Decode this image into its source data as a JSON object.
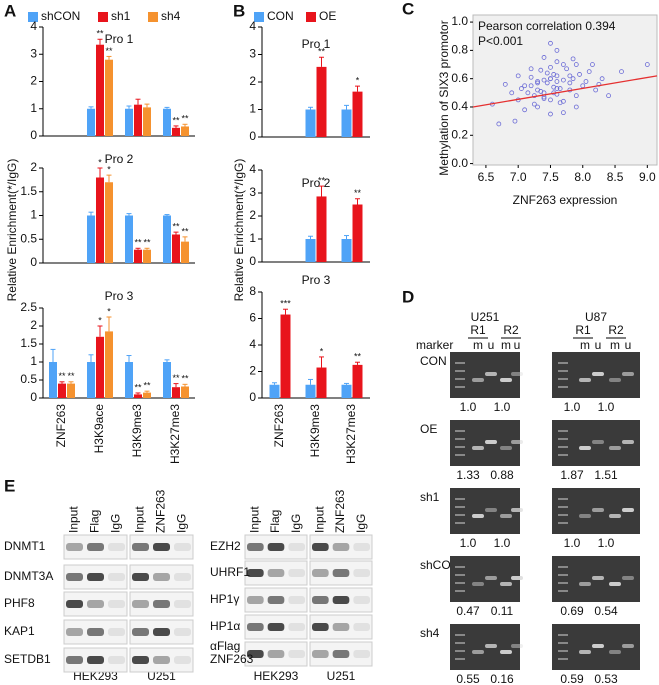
{
  "panel_labels": [
    "A",
    "B",
    "C",
    "D",
    "E"
  ],
  "chart_data": [
    {
      "type": "bar",
      "ylabel": "Relative Enrichment(*/IgG)",
      "categories": [
        "ZNF263",
        "H3K9ace",
        "H3K9me3",
        "H3K27me3"
      ],
      "series": [
        {
          "name": "shCON",
          "color": "#4fa3f7"
        },
        {
          "name": "sh1",
          "color": "#e8141c"
        },
        {
          "name": "sh4",
          "color": "#f5922f"
        }
      ],
      "subplots": [
        {
          "title": "Pro 1",
          "ylim": [
            0,
            4
          ],
          "yticks": [
            0,
            1,
            2,
            3,
            4
          ],
          "series": [
            {
              "values": [
                null,
                1.0,
                1.0,
                1.0
              ],
              "errors": [
                null,
                0.07,
                0.1,
                0.05
              ],
              "significance": [
                null,
                null,
                null,
                null
              ]
            },
            {
              "values": [
                null,
                3.35,
                1.15,
                0.3
              ],
              "errors": [
                null,
                0.2,
                0.2,
                0.07
              ],
              "significance": [
                null,
                "**",
                null,
                "**"
              ]
            },
            {
              "values": [
                null,
                2.8,
                1.05,
                0.35
              ],
              "errors": [
                null,
                0.12,
                0.12,
                0.08
              ],
              "significance": [
                null,
                "**",
                null,
                "**"
              ]
            }
          ]
        },
        {
          "title": "Pro 2",
          "ylim": [
            0,
            2
          ],
          "yticks": [
            0,
            0.5,
            1,
            1.5,
            2
          ],
          "series": [
            {
              "values": [
                null,
                1.0,
                1.0,
                1.0
              ],
              "errors": [
                null,
                0.07,
                0.04,
                0.02
              ],
              "significance": [
                null,
                null,
                null,
                null
              ]
            },
            {
              "values": [
                null,
                1.8,
                0.28,
                0.6
              ],
              "errors": [
                null,
                0.2,
                0.03,
                0.05
              ],
              "significance": [
                null,
                "*",
                "**",
                "**"
              ]
            },
            {
              "values": [
                null,
                1.7,
                0.28,
                0.45
              ],
              "errors": [
                null,
                0.15,
                0.03,
                0.1
              ],
              "significance": [
                null,
                "*",
                "**",
                "**"
              ]
            }
          ]
        },
        {
          "title": "Pro 3",
          "ylim": [
            0,
            2.5
          ],
          "yticks": [
            0,
            0.5,
            1,
            1.5,
            2,
            2.5
          ],
          "series": [
            {
              "values": [
                1.0,
                1.0,
                1.0,
                1.0
              ],
              "errors": [
                0.35,
                0.2,
                0.18,
                0.06
              ],
              "significance": [
                null,
                null,
                null,
                null
              ]
            },
            {
              "values": [
                0.4,
                1.7,
                0.1,
                0.3
              ],
              "errors": [
                0.05,
                0.3,
                0.04,
                0.1
              ],
              "significance": [
                "**",
                "*",
                "**",
                "**"
              ]
            },
            {
              "values": [
                0.4,
                1.85,
                0.15,
                0.32
              ],
              "errors": [
                0.05,
                0.4,
                0.04,
                0.06
              ],
              "significance": [
                "**",
                "*",
                "**",
                "**"
              ]
            }
          ]
        }
      ]
    },
    {
      "type": "bar",
      "ylabel": "Relative Enrichment(*/IgG)",
      "categories": [
        "ZNF263",
        "H3K9me3",
        "H3K27me3"
      ],
      "series": [
        {
          "name": "CON",
          "color": "#4fa3f7"
        },
        {
          "name": "OE",
          "color": "#e8141c"
        }
      ],
      "subplots": [
        {
          "title": "Pro 1",
          "ylim": [
            0,
            4
          ],
          "yticks": [
            0,
            1,
            2,
            3,
            4
          ],
          "series": [
            {
              "values": [
                null,
                1.0,
                1.0
              ],
              "errors": [
                null,
                0.08,
                0.15
              ],
              "significance": [
                null,
                null,
                null
              ]
            },
            {
              "values": [
                null,
                2.55,
                1.65
              ],
              "errors": [
                null,
                0.35,
                0.2
              ],
              "significance": [
                null,
                "**",
                "*"
              ]
            }
          ]
        },
        {
          "title": "Pro 2",
          "ylim": [
            0,
            4
          ],
          "yticks": [
            0,
            1,
            2,
            3,
            4
          ],
          "series": [
            {
              "values": [
                null,
                1.0,
                1.0
              ],
              "errors": [
                null,
                0.12,
                0.15
              ],
              "significance": [
                null,
                null,
                null
              ]
            },
            {
              "values": [
                null,
                2.85,
                2.5
              ],
              "errors": [
                null,
                0.45,
                0.25
              ],
              "significance": [
                null,
                "**",
                "**"
              ]
            }
          ]
        },
        {
          "title": "Pro 3",
          "ylim": [
            0,
            8
          ],
          "yticks": [
            0,
            2,
            4,
            6,
            8
          ],
          "series": [
            {
              "values": [
                1.0,
                1.0,
                1.0
              ],
              "errors": [
                0.15,
                0.4,
                0.1
              ],
              "significance": [
                null,
                null,
                null
              ]
            },
            {
              "values": [
                6.3,
                2.3,
                2.5
              ],
              "errors": [
                0.4,
                0.8,
                0.2
              ],
              "significance": [
                "***",
                "*",
                "**"
              ]
            }
          ]
        }
      ]
    },
    {
      "type": "scatter",
      "xlabel": "ZNF263 expression",
      "ylabel": "Methylation of SIX3 promotor",
      "annotations": [
        "Pearson correlation 0.394",
        "P<0.001"
      ],
      "color": "#6b6bd6",
      "background": "#f0f0f0",
      "xlim": [
        6.3,
        9.15
      ],
      "ylim": [
        -0.01,
        1.05
      ],
      "xticks": [
        {
          "value": 6.5,
          "label": "6.5"
        },
        {
          "value": 7.0,
          "label": "7.0"
        },
        {
          "value": 7.5,
          "label": "7.5"
        },
        {
          "value": 8.0,
          "label": "8.0"
        },
        {
          "value": 8.5,
          "label": "8.5"
        },
        {
          "value": 9.0,
          "label": "9.0"
        }
      ],
      "yticks": [
        {
          "value": 0,
          "label": "0.0"
        },
        {
          "value": 0.2,
          "label": "0.2"
        },
        {
          "value": 0.4,
          "label": "0.4"
        },
        {
          "value": 0.6,
          "label": "0.6"
        },
        {
          "value": 0.8,
          "label": "0.8"
        },
        {
          "value": 1.0,
          "label": "1.0"
        }
      ],
      "x": [
        7.2,
        7.5,
        7.8,
        7.4,
        7.6,
        7.0,
        8.1,
        7.3,
        7.7,
        7.9,
        7.45,
        7.55,
        7.65,
        7.35,
        7.25,
        7.85,
        8.0,
        6.9,
        7.1,
        7.6,
        7.4,
        7.5,
        8.3,
        6.6,
        7.8,
        7.7,
        7.2,
        7.3,
        7.5,
        7.6,
        7.9,
        8.2,
        7.0,
        7.4,
        7.5,
        7.7,
        6.8,
        8.4,
        7.6,
        7.3,
        7.45,
        7.55,
        7.35,
        7.65,
        7.75,
        8.05,
        7.15,
        6.95,
        7.85,
        7.5,
        8.6,
        7.1,
        7.9,
        7.6,
        7.4,
        7.25,
        7.8,
        8.15,
        7.05,
        7.7,
        9.0,
        6.7,
        7.5,
        7.6,
        7.3,
        7.4,
        7.95,
        8.25,
        7.2,
        7.55
      ],
      "y": [
        0.55,
        0.6,
        0.62,
        0.5,
        0.58,
        0.45,
        0.65,
        0.52,
        0.7,
        0.48,
        0.57,
        0.63,
        0.53,
        0.66,
        0.42,
        0.6,
        0.55,
        0.5,
        0.38,
        0.72,
        0.47,
        0.68,
        0.6,
        0.42,
        0.52,
        0.44,
        0.61,
        0.58,
        0.35,
        0.49,
        0.7,
        0.52,
        0.62,
        0.75,
        0.45,
        0.59,
        0.56,
        0.48,
        0.8,
        0.4,
        0.64,
        0.54,
        0.51,
        0.43,
        0.67,
        0.58,
        0.5,
        0.3,
        0.74,
        0.6,
        0.65,
        0.55,
        0.4,
        0.62,
        0.59,
        0.48,
        0.57,
        0.7,
        0.53,
        0.36,
        0.7,
        0.28,
        0.85,
        0.53,
        0.57,
        0.46,
        0.63,
        0.56,
        0.67,
        0.5
      ],
      "fit": {
        "color": "#e53030",
        "x": [
          6.3,
          9.15
        ],
        "y": [
          0.4,
          0.62
        ]
      }
    }
  ],
  "gel": {
    "cell_lines": [
      "U251",
      "U87"
    ],
    "replicates": [
      "R1",
      "R2"
    ],
    "lanes": {
      "marker": "marker",
      "methylated": "m",
      "unmethylated": "u"
    },
    "rows": [
      {
        "name": "CON",
        "ratios": [
          [
            "1.0",
            "1.0"
          ],
          [
            "1.0",
            "1.0"
          ]
        ]
      },
      {
        "name": "OE",
        "ratios": [
          [
            "1.33",
            "0.88"
          ],
          [
            "1.87",
            "1.51"
          ]
        ]
      },
      {
        "name": "sh1",
        "ratios": [
          [
            "1.0",
            "1.0"
          ],
          [
            "1.0",
            "1.0"
          ]
        ]
      },
      {
        "name": "shCON",
        "ratios": [
          [
            "0.47",
            "0.11"
          ],
          [
            "0.69",
            "0.54"
          ]
        ]
      },
      {
        "name": "sh4",
        "ratios": [
          [
            "0.55",
            "0.16"
          ],
          [
            "0.59",
            "0.53"
          ]
        ]
      }
    ]
  },
  "blots": [
    {
      "rows": [
        [
          "DNMT1"
        ],
        [
          "DNMT3A"
        ],
        [
          "PHF8"
        ],
        [
          "KAP1"
        ],
        [
          "SETDB1"
        ]
      ],
      "groups": [
        {
          "cell_line": "HEK293",
          "lanes": [
            "Input",
            "Flag",
            "IgG"
          ]
        },
        {
          "cell_line": "U251",
          "lanes": [
            "Input",
            "ZNF263",
            "IgG"
          ]
        }
      ]
    },
    {
      "rows": [
        [
          "EZH2"
        ],
        [
          "UHRF1"
        ],
        [
          "HP1γ"
        ],
        [
          "HP1α"
        ],
        [
          "αFlag",
          "ZNF263"
        ]
      ],
      "groups": [
        {
          "cell_line": "HEK293",
          "lanes": [
            "Input",
            "Flag",
            "IgG"
          ]
        },
        {
          "cell_line": "U251",
          "lanes": [
            "Input",
            "ZNF263",
            "IgG"
          ]
        }
      ]
    }
  ]
}
